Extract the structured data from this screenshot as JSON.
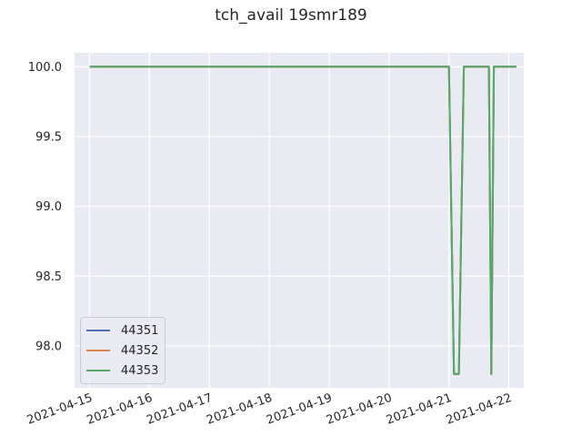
{
  "chart_data": {
    "type": "line",
    "title": "tch_avail 19smr189",
    "xlabel": "",
    "ylabel": "",
    "x_tick_labels": [
      "2021-04-15",
      "2021-04-16",
      "2021-04-17",
      "2021-04-18",
      "2021-04-19",
      "2021-04-20",
      "2021-04-21",
      "2021-04-22"
    ],
    "y_tick_labels": [
      "98.0",
      "98.5",
      "99.0",
      "99.5",
      "100.0"
    ],
    "y_ticks": [
      98.0,
      98.5,
      99.0,
      99.5,
      100.0
    ],
    "xlim": [
      "2021-04-14 18:00",
      "2021-04-22 06:00"
    ],
    "ylim": [
      97.7,
      100.1
    ],
    "grid": true,
    "legend_position": "lower-left",
    "series": [
      {
        "name": "44351",
        "color": "#4c72b0",
        "x": [
          "2021-04-15 00:00",
          "2021-04-21 00:00",
          "2021-04-21 02:00",
          "2021-04-21 04:00",
          "2021-04-21 06:00",
          "2021-04-21 16:00",
          "2021-04-21 17:00",
          "2021-04-21 18:00",
          "2021-04-22 00:00",
          "2021-04-22 03:00"
        ],
        "values": [
          100.0,
          100.0,
          97.8,
          97.8,
          100.0,
          100.0,
          97.8,
          100.0,
          100.0,
          100.0
        ]
      },
      {
        "name": "44352",
        "color": "#dd8452",
        "x": [
          "2021-04-15 00:00",
          "2021-04-21 00:00",
          "2021-04-21 02:00",
          "2021-04-21 04:00",
          "2021-04-21 06:00",
          "2021-04-21 16:00",
          "2021-04-21 17:00",
          "2021-04-21 18:00",
          "2021-04-22 00:00",
          "2021-04-22 03:00"
        ],
        "values": [
          100.0,
          100.0,
          97.8,
          97.8,
          100.0,
          100.0,
          97.8,
          100.0,
          100.0,
          100.0
        ]
      },
      {
        "name": "44353",
        "color": "#55a868",
        "x": [
          "2021-04-15 00:00",
          "2021-04-21 00:00",
          "2021-04-21 02:00",
          "2021-04-21 04:00",
          "2021-04-21 06:00",
          "2021-04-21 16:00",
          "2021-04-21 17:00",
          "2021-04-21 18:00",
          "2021-04-22 00:00",
          "2021-04-22 03:00"
        ],
        "values": [
          100.0,
          100.0,
          97.8,
          97.8,
          100.0,
          100.0,
          97.8,
          100.0,
          100.0,
          100.0
        ]
      }
    ],
    "colors": {
      "plot_background": "#eaeaf2",
      "grid": "#ffffff",
      "text": "#262626"
    }
  }
}
